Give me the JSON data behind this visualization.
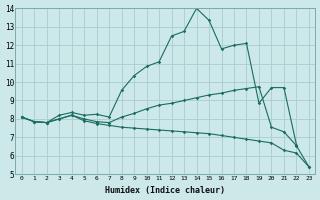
{
  "xlabel": "Humidex (Indice chaleur)",
  "bg_color": "#cce8e8",
  "line_color": "#1a6b60",
  "grid_color": "#aacccc",
  "xlim": [
    -0.5,
    23.5
  ],
  "ylim": [
    5,
    14
  ],
  "yticks": [
    5,
    6,
    7,
    8,
    9,
    10,
    11,
    12,
    13,
    14
  ],
  "xticks": [
    0,
    1,
    2,
    3,
    4,
    5,
    6,
    7,
    8,
    9,
    10,
    11,
    12,
    13,
    14,
    15,
    16,
    17,
    18,
    19,
    20,
    21,
    22,
    23
  ],
  "line1_x": [
    0,
    1,
    2,
    3,
    4,
    5,
    6,
    7,
    8,
    9,
    10,
    11,
    12,
    13,
    14,
    15,
    16,
    17,
    18,
    19,
    20,
    21,
    22,
    23
  ],
  "line1_y": [
    8.1,
    7.85,
    7.8,
    8.2,
    8.35,
    8.2,
    8.25,
    8.1,
    9.55,
    10.35,
    10.85,
    11.1,
    12.5,
    12.75,
    14.0,
    13.35,
    11.8,
    12.0,
    12.1,
    8.85,
    9.7,
    9.7,
    6.6,
    null
  ],
  "line2_x": [
    0,
    1,
    2,
    3,
    4,
    5,
    6,
    7,
    8,
    9,
    10,
    11,
    12,
    13,
    14,
    15,
    16,
    17,
    18,
    19,
    20,
    21,
    22,
    23
  ],
  "line2_y": [
    8.1,
    7.85,
    7.8,
    8.0,
    8.2,
    8.0,
    7.85,
    7.8,
    8.1,
    8.3,
    8.55,
    8.75,
    8.85,
    9.0,
    9.15,
    9.3,
    9.4,
    9.55,
    9.65,
    9.75,
    7.55,
    7.3,
    6.55,
    5.4
  ],
  "line3_x": [
    0,
    1,
    2,
    3,
    4,
    5,
    6,
    7,
    8,
    9,
    10,
    11,
    12,
    13,
    14,
    15,
    16,
    17,
    18,
    19,
    20,
    21,
    22,
    23
  ],
  "line3_y": [
    8.1,
    7.85,
    7.8,
    8.0,
    8.2,
    7.9,
    7.75,
    7.65,
    7.55,
    7.5,
    7.45,
    7.4,
    7.35,
    7.3,
    7.25,
    7.2,
    7.1,
    7.0,
    6.9,
    6.8,
    6.7,
    6.3,
    6.15,
    5.4
  ]
}
